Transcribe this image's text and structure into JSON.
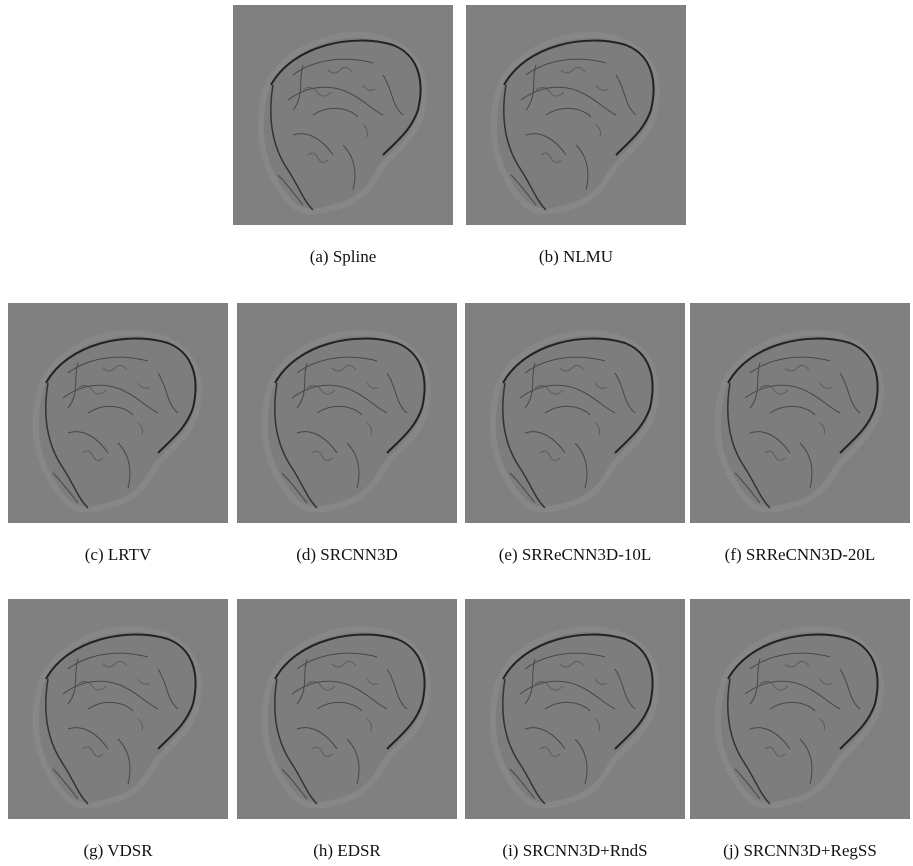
{
  "rows": [
    [
      "(a) Spline",
      "(b) NLMU"
    ],
    [
      "(c) LRTV",
      "(d) SRCNN3D",
      "(e) SRReCNN3D-10L",
      "(f) SRReCNN3D-20L"
    ],
    [
      "(g) VDSR",
      "(h) EDSR",
      "(i) SRCNN3D+RndS",
      "(j) SRCNN3D+RegSS"
    ]
  ]
}
